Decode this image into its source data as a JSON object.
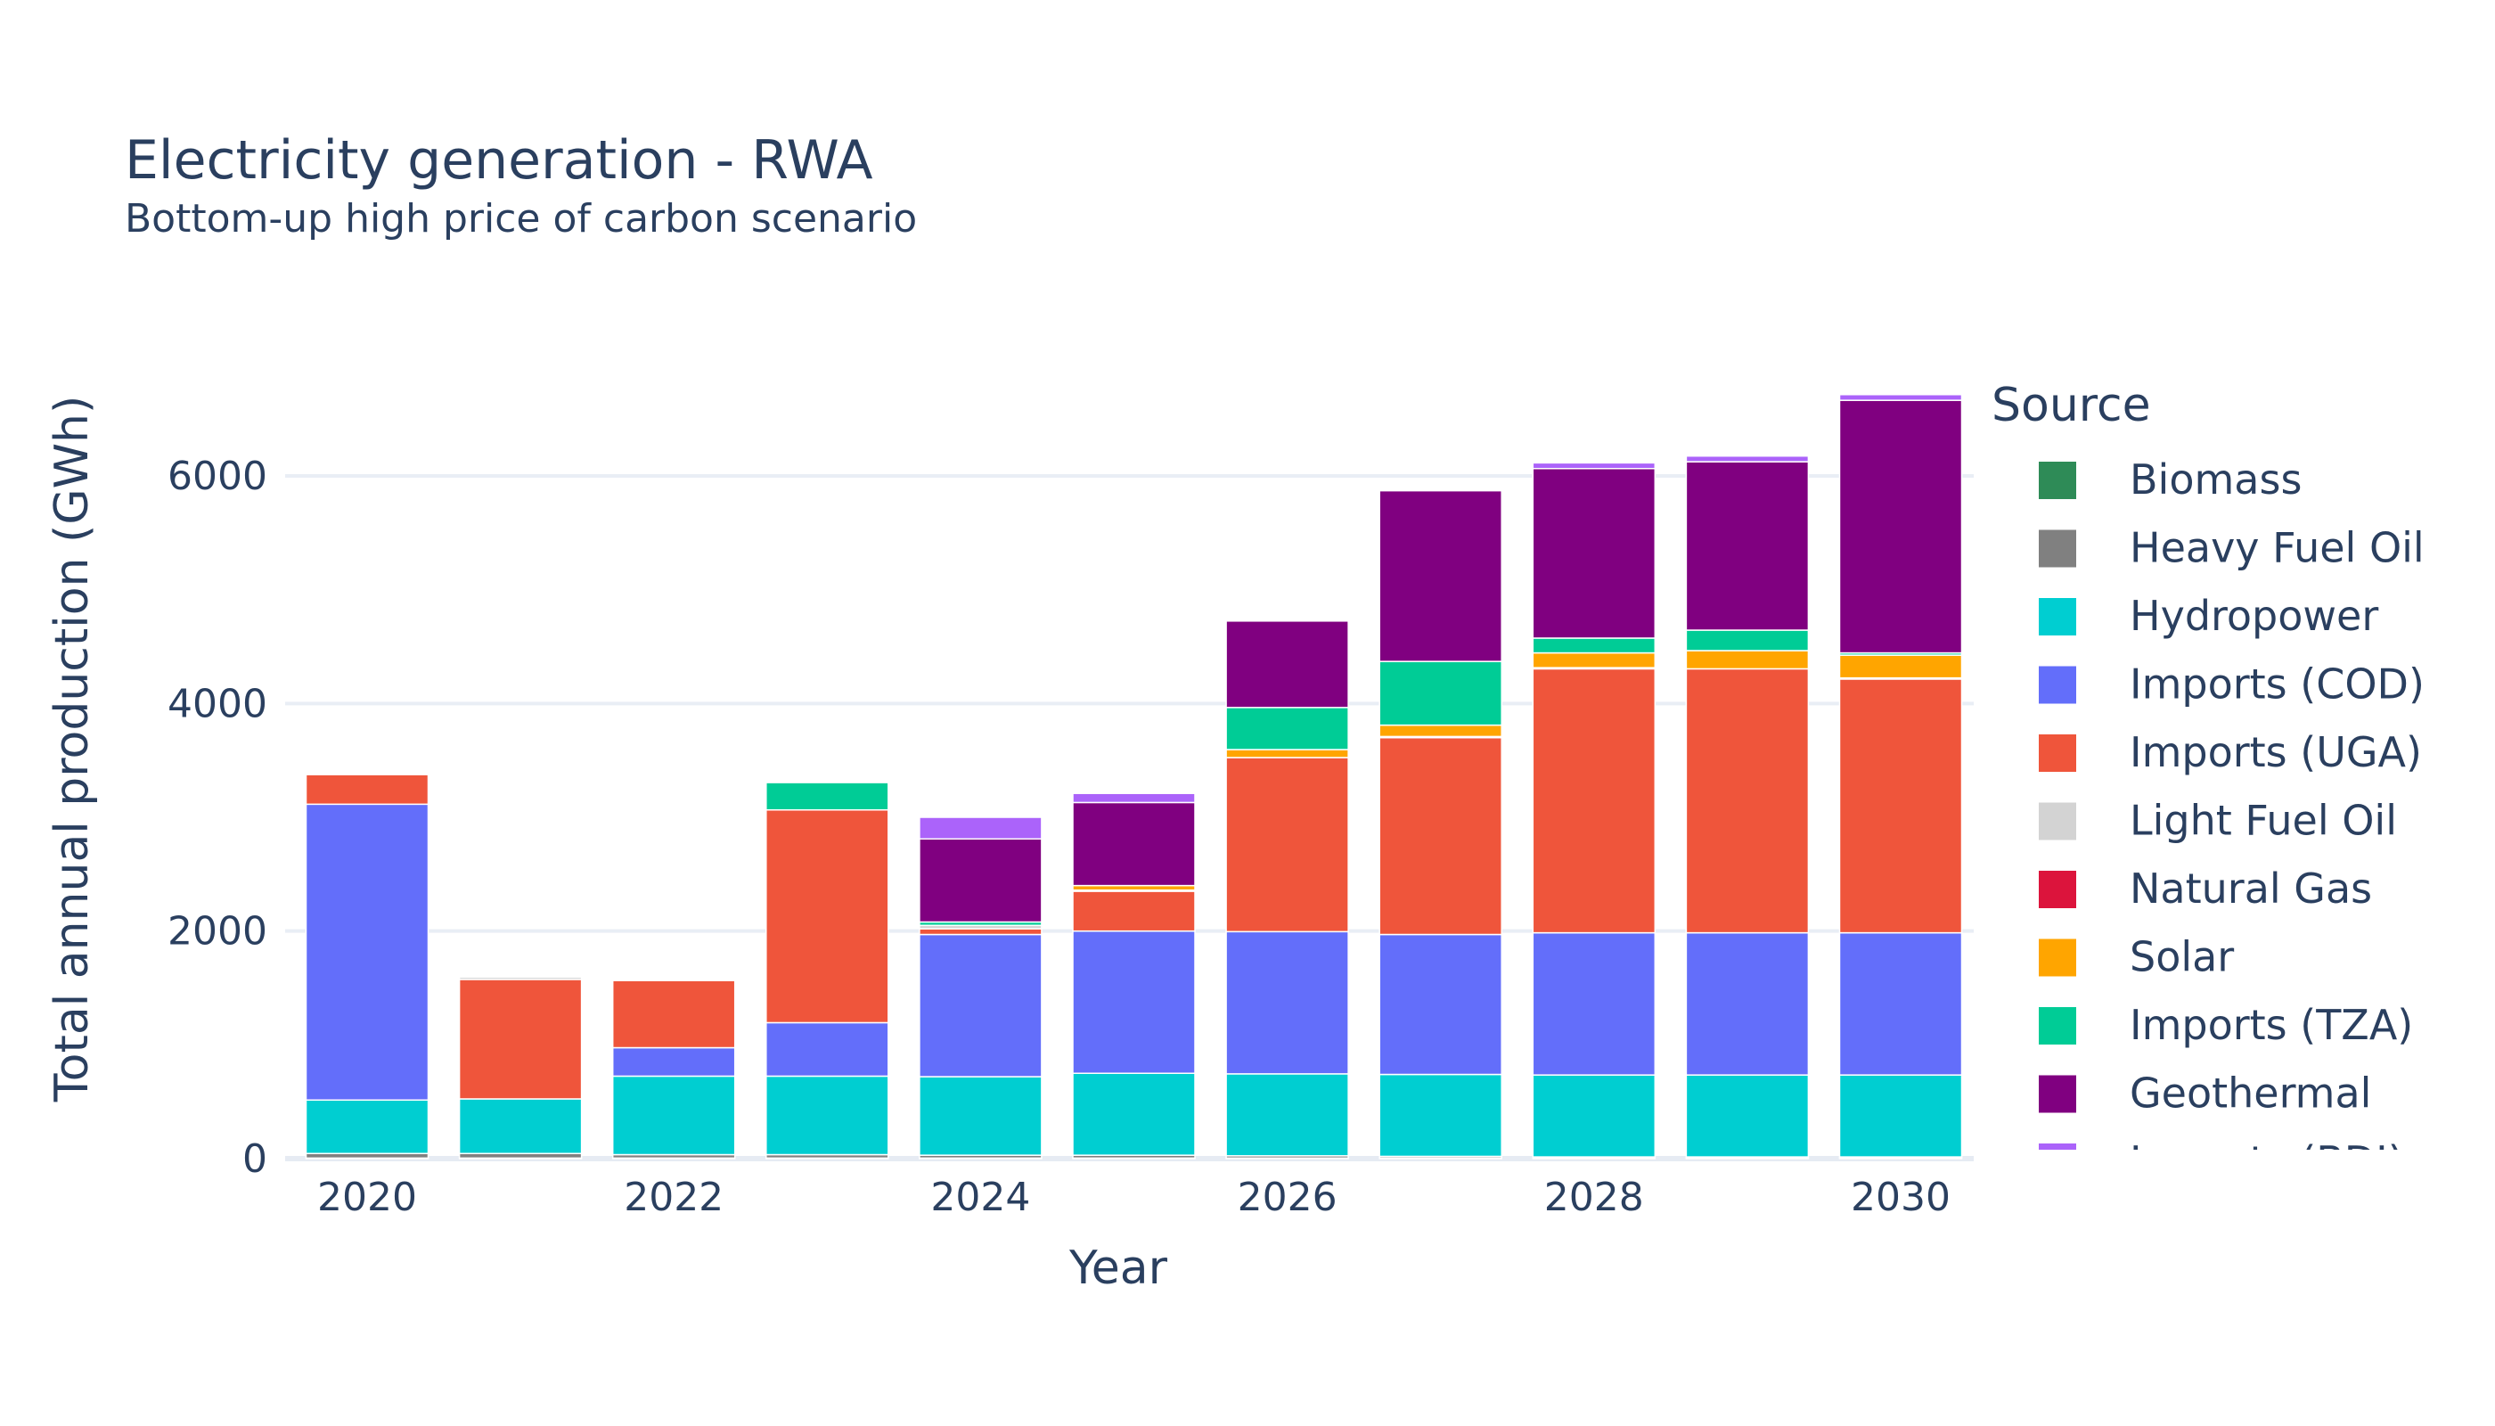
{
  "chart_data": {
    "type": "bar",
    "stacked": true,
    "title": "Electricity generation - RWA",
    "subtitle": "Bottom-up high price of carbon scenario",
    "xlabel": "Year",
    "ylabel": "Total annual production (GWh)",
    "legend_title": "Source",
    "legend_placement": "right",
    "grid": true,
    "ylim": [
      0,
      7050
    ],
    "yticks": [
      0,
      2000,
      4000,
      6000
    ],
    "xticks": [
      2020,
      2022,
      2024,
      2026,
      2028,
      2030
    ],
    "categories": [
      2020,
      2021,
      2022,
      2023,
      2024,
      2025,
      2026,
      2027,
      2028,
      2029,
      2030
    ],
    "series": [
      {
        "name": "Biomass",
        "color": "#2e8b57",
        "values": [
          5,
          5,
          5,
          5,
          5,
          5,
          5,
          5,
          5,
          5,
          5
        ]
      },
      {
        "name": "Heavy Fuel Oil",
        "color": "#808080",
        "values": [
          40,
          40,
          30,
          30,
          25,
          25,
          20,
          15,
          10,
          10,
          10
        ]
      },
      {
        "name": "Hydropower",
        "color": "#00ced1",
        "values": [
          470,
          480,
          690,
          690,
          690,
          720,
          720,
          720,
          720,
          720,
          720
        ]
      },
      {
        "name": "Imports (COD)",
        "color": "#636efa",
        "values": [
          2600,
          0,
          250,
          470,
          1250,
          1250,
          1250,
          1230,
          1250,
          1250,
          1250
        ]
      },
      {
        "name": "Imports (UGA)",
        "color": "#ef553b",
        "values": [
          260,
          1050,
          590,
          1870,
          50,
          350,
          1530,
          1730,
          2320,
          2320,
          2230
        ]
      },
      {
        "name": "Light Fuel Oil",
        "color": "#d3d3d3",
        "values": [
          0,
          20,
          10,
          0,
          30,
          10,
          0,
          10,
          10,
          0,
          10
        ]
      },
      {
        "name": "Natural Gas",
        "color": "#dc143c",
        "values": [
          0,
          0,
          0,
          0,
          0,
          0,
          0,
          0,
          0,
          0,
          0
        ]
      },
      {
        "name": "Solar",
        "color": "#ffa500",
        "values": [
          0,
          0,
          0,
          0,
          0,
          40,
          70,
          100,
          130,
          160,
          200
        ]
      },
      {
        "name": "Imports (TZA)",
        "color": "#00cc96",
        "values": [
          0,
          0,
          0,
          240,
          30,
          0,
          370,
          560,
          130,
          180,
          20
        ]
      },
      {
        "name": "Geothermal",
        "color": "#800080",
        "values": [
          0,
          0,
          0,
          0,
          730,
          730,
          760,
          1500,
          1490,
          1480,
          2220
        ]
      },
      {
        "name": "Imports (BDI)",
        "color": "#ab63fa",
        "values": [
          0,
          0,
          0,
          0,
          190,
          80,
          0,
          0,
          50,
          50,
          50
        ]
      }
    ]
  }
}
